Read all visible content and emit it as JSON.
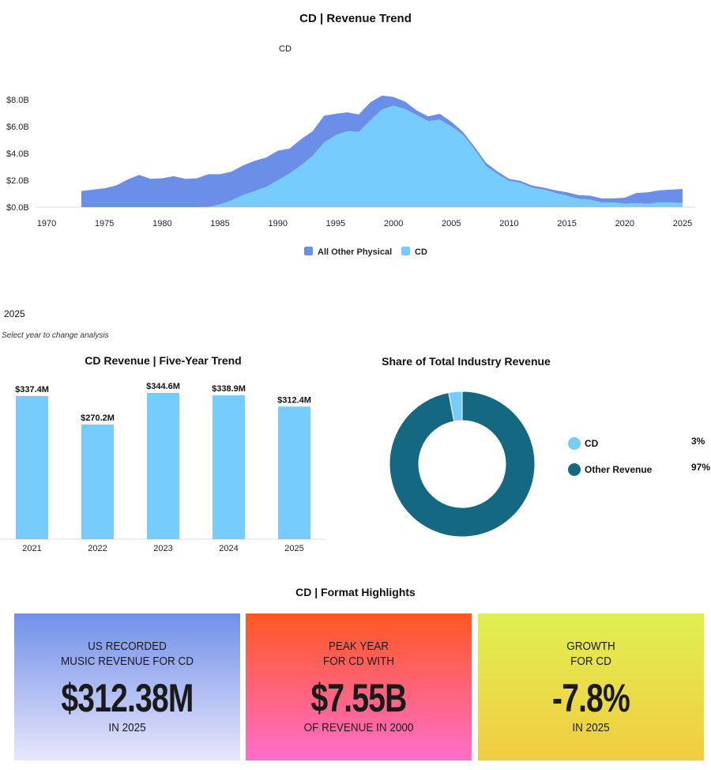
{
  "header": {
    "title": "CD | Revenue Trend",
    "format_label": "CD"
  },
  "year_selector": {
    "value": "2025",
    "hint": "Select year to change analysis"
  },
  "colors": {
    "cd": "#75ccfd",
    "other_physical": "#6b8fe8",
    "other_revenue": "#156882"
  },
  "chart_data": [
    {
      "type": "area",
      "stacked": true,
      "title": "CD | Revenue Trend",
      "xlim": [
        1970,
        2025
      ],
      "ylim": [
        0,
        8.5
      ],
      "x_ticks": [
        "1970",
        "1975",
        "1980",
        "1985",
        "1990",
        "1995",
        "2000",
        "2005",
        "2010",
        "2015",
        "2020",
        "2025"
      ],
      "y_ticks": [
        "$0.0B",
        "$2.0B",
        "$4.0B",
        "$6.0B",
        "$8.0B"
      ],
      "legend_position": "bottom",
      "x": [
        1973,
        1974,
        1975,
        1976,
        1977,
        1978,
        1979,
        1980,
        1981,
        1982,
        1983,
        1984,
        1985,
        1986,
        1987,
        1988,
        1989,
        1990,
        1991,
        1992,
        1993,
        1994,
        1995,
        1996,
        1997,
        1998,
        1999,
        2000,
        2001,
        2002,
        2003,
        2004,
        2005,
        2006,
        2007,
        2008,
        2009,
        2010,
        2011,
        2012,
        2013,
        2014,
        2015,
        2016,
        2017,
        2018,
        2019,
        2020,
        2021,
        2022,
        2023,
        2024,
        2025
      ],
      "series": [
        {
          "name": "CD",
          "values": [
            0,
            0,
            0,
            0,
            0,
            0,
            0,
            0,
            0,
            0,
            0,
            0.01,
            0.2,
            0.5,
            0.9,
            1.2,
            1.5,
            2.0,
            2.5,
            3.1,
            3.8,
            4.8,
            5.35,
            5.65,
            5.6,
            6.45,
            7.25,
            7.55,
            7.3,
            6.85,
            6.4,
            6.5,
            6.0,
            5.4,
            4.3,
            3.05,
            2.45,
            1.95,
            1.8,
            1.45,
            1.3,
            1.05,
            0.85,
            0.6,
            0.55,
            0.35,
            0.35,
            0.25,
            0.3,
            0.25,
            0.35,
            0.34,
            0.31
          ]
        },
        {
          "name": "All Other Physical",
          "values": [
            1.2,
            1.3,
            1.4,
            1.6,
            2.05,
            2.4,
            2.1,
            2.15,
            2.3,
            2.1,
            2.15,
            2.44,
            2.25,
            2.15,
            2.2,
            2.25,
            2.2,
            2.2,
            1.85,
            1.95,
            1.85,
            2.0,
            1.6,
            1.4,
            1.3,
            1.35,
            1.05,
            0.65,
            0.55,
            0.35,
            0.35,
            0.45,
            0.35,
            0.2,
            0.2,
            0.25,
            0.2,
            0.15,
            0.15,
            0.15,
            0.15,
            0.2,
            0.25,
            0.3,
            0.3,
            0.3,
            0.3,
            0.45,
            0.75,
            0.85,
            0.9,
            0.96,
            1.04
          ]
        }
      ],
      "legend": [
        "All Other Physical",
        "CD"
      ]
    },
    {
      "type": "bar",
      "title": "CD Revenue | Five-Year Trend",
      "categories": [
        "2021",
        "2022",
        "2023",
        "2024",
        "2025"
      ],
      "values": [
        337.4,
        270.2,
        344.6,
        338.9,
        312.4
      ],
      "data_labels": [
        "$337.4M",
        "$270.2M",
        "$344.6M",
        "$338.9M",
        "$312.4M"
      ]
    },
    {
      "type": "pie",
      "donut": true,
      "title": "Share of Total Industry Revenue",
      "labels": [
        "CD",
        "Other Revenue"
      ],
      "values": [
        3,
        97
      ],
      "value_labels": [
        "3%",
        "97%"
      ],
      "legend_position": "right"
    }
  ],
  "highlights": {
    "title": "CD | Format Highlights",
    "cards": [
      {
        "label_line1": "US RECORDED",
        "label_line2": "MUSIC REVENUE FOR CD",
        "value": "$312.38M",
        "sub": "IN 2025",
        "gradient": [
          "#7090e8",
          "#e8e6fc"
        ]
      },
      {
        "label_line1": "PEAK YEAR",
        "label_line2": "FOR CD WITH",
        "value": "$7.55B",
        "sub": "OF REVENUE IN 2000",
        "gradient": [
          "#ff5722",
          "#ff6ecb"
        ]
      },
      {
        "label_line1": "GROWTH",
        "label_line2": "FOR CD",
        "value": "-7.8%",
        "sub": "IN 2025",
        "gradient": [
          "#e0ef50",
          "#f2cc40"
        ]
      }
    ]
  }
}
